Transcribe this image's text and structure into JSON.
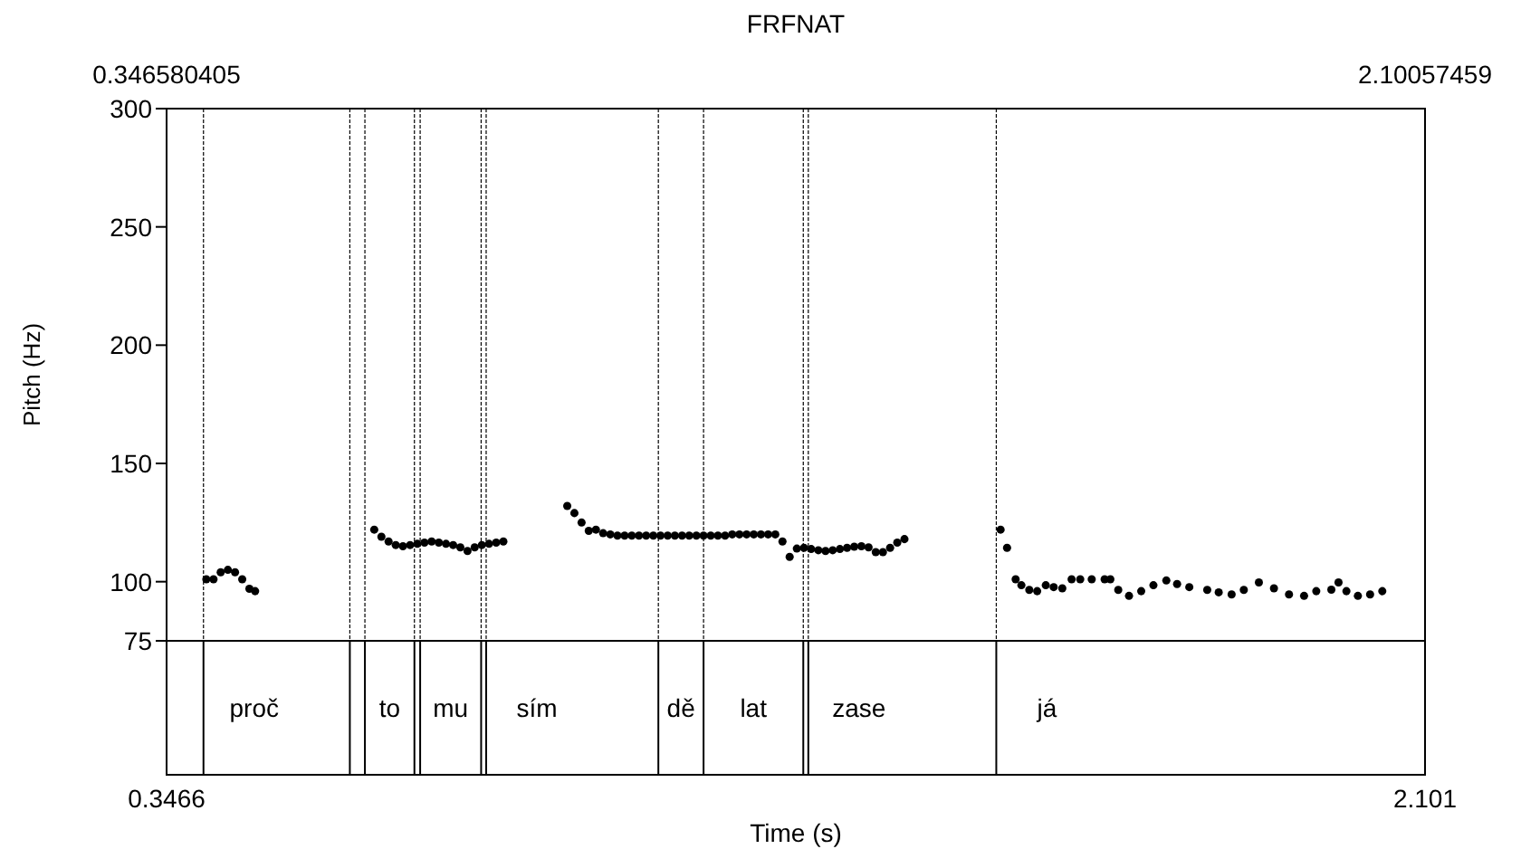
{
  "chart_data": {
    "type": "scatter",
    "title": "FRFNAT",
    "xlabel": "Time (s)",
    "ylabel": "Pitch (Hz)",
    "xlim": [
      0.346580405,
      2.10057459
    ],
    "ylim": [
      75,
      300
    ],
    "xticks": [
      {
        "value": 0.346580405,
        "label": "0.3466"
      },
      {
        "value": 2.10057459,
        "label": "2.101"
      }
    ],
    "x2lim": [
      0.346580405,
      2.10057459
    ],
    "x2ticks": [
      0.346580405,
      2.10057459
    ],
    "yticks": [
      75,
      100,
      150,
      200,
      250,
      300
    ],
    "grid": false,
    "marker": "circle",
    "ref_lines": [
      {
        "axis": "x",
        "value": 0.398,
        "label": "proč"
      },
      {
        "axis": "x",
        "value": 0.602
      },
      {
        "axis": "x",
        "value": 0.623,
        "label": "to"
      },
      {
        "axis": "x",
        "value": 0.692
      },
      {
        "axis": "x",
        "value": 0.7,
        "label": "mu"
      },
      {
        "axis": "x",
        "value": 0.785
      },
      {
        "axis": "x",
        "value": 0.792,
        "label": "sím"
      },
      {
        "axis": "x",
        "value": 1.032,
        "label": "dě"
      },
      {
        "axis": "x",
        "value": 1.095,
        "label": "lat"
      },
      {
        "axis": "x",
        "value": 1.234
      },
      {
        "axis": "x",
        "value": 1.241,
        "label": "zase"
      },
      {
        "axis": "x",
        "value": 1.503,
        "label": "já"
      }
    ],
    "series": [
      {
        "color": "#000000",
        "x": [
          0.402,
          0.412,
          0.422,
          0.432,
          0.442,
          0.452,
          0.462,
          0.47,
          0.636,
          0.646,
          0.656,
          0.666,
          0.676,
          0.686,
          0.696,
          0.706,
          0.716,
          0.726,
          0.736,
          0.746,
          0.756,
          0.766,
          0.776,
          0.786,
          0.796,
          0.806,
          0.816,
          0.905,
          0.915,
          0.925,
          0.935,
          0.945,
          0.955,
          0.965,
          0.975,
          0.985,
          0.995,
          1.005,
          1.015,
          1.025,
          1.035,
          1.045,
          1.055,
          1.065,
          1.075,
          1.085,
          1.095,
          1.105,
          1.115,
          1.125,
          1.135,
          1.145,
          1.155,
          1.165,
          1.175,
          1.185,
          1.195,
          1.205,
          1.215,
          1.225,
          1.235,
          1.245,
          1.255,
          1.265,
          1.275,
          1.285,
          1.295,
          1.305,
          1.315,
          1.325,
          1.335,
          1.345,
          1.355,
          1.365,
          1.375,
          1.509,
          1.518,
          1.53,
          1.538,
          1.549,
          1.56,
          1.572,
          1.583,
          1.595,
          1.608,
          1.62,
          1.636,
          1.654,
          1.662,
          1.673,
          1.688,
          1.705,
          1.722,
          1.74,
          1.755,
          1.772,
          1.797,
          1.813,
          1.831,
          1.848,
          1.869,
          1.89,
          1.911,
          1.932,
          1.949,
          1.97,
          1.98,
          1.991,
          2.007,
          2.024,
          2.041
        ],
        "values": [
          101,
          101,
          104,
          105,
          104,
          101,
          97,
          96,
          122,
          119,
          117,
          115.5,
          115,
          115.5,
          116,
          116.5,
          117,
          116.5,
          116,
          115.5,
          114.5,
          113,
          114.5,
          115.5,
          116,
          116.5,
          117,
          132,
          129,
          125,
          121.5,
          122,
          120.5,
          120,
          119.5,
          119.5,
          119.5,
          119.5,
          119.5,
          119.5,
          119.5,
          119.5,
          119.5,
          119.5,
          119.5,
          119.5,
          119.5,
          119.5,
          119.5,
          119.5,
          120,
          120,
          120,
          120,
          120,
          120,
          120,
          117,
          110.5,
          114,
          114.3,
          113.8,
          113.3,
          113,
          113.3,
          113.8,
          114.3,
          114.8,
          115,
          114.5,
          112.5,
          112.5,
          114.3,
          116.5,
          118,
          122,
          114.3,
          101,
          98.5,
          96.5,
          96,
          98.5,
          97.7,
          97.2,
          101,
          101,
          101,
          101,
          101,
          96.5,
          94,
          96,
          98.5,
          100.5,
          99,
          97.7,
          96.5,
          95.5,
          94.6,
          96.5,
          99.7,
          97.2,
          94.6,
          94,
          96,
          96.6,
          99.7,
          96,
          94,
          94.6,
          96
        ]
      }
    ]
  }
}
